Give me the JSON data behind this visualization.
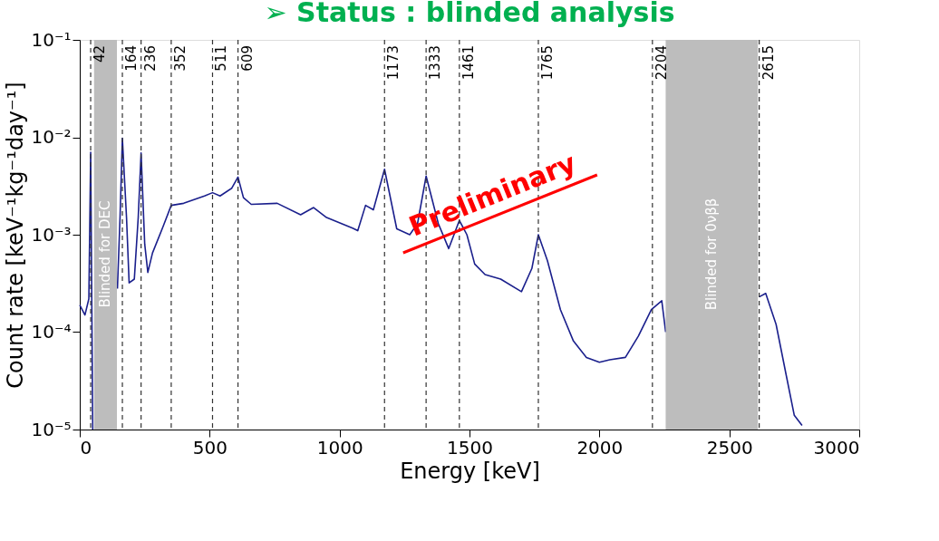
{
  "chart_data": {
    "type": "line",
    "title": "➢ Status : blinded analysis",
    "xlabel": "Energy [keV]",
    "ylabel": "Count rate [keV⁻¹kg⁻¹day⁻¹]",
    "x": [
      0,
      20,
      35,
      42,
      50,
      100,
      145,
      155,
      164,
      180,
      190,
      210,
      225,
      236,
      250,
      262,
      280,
      320,
      352,
      400,
      480,
      511,
      540,
      585,
      609,
      630,
      660,
      760,
      850,
      900,
      950,
      1050,
      1070,
      1100,
      1130,
      1173,
      1220,
      1270,
      1300,
      1333,
      1380,
      1420,
      1461,
      1490,
      1520,
      1560,
      1620,
      1700,
      1740,
      1765,
      1800,
      1850,
      1900,
      1950,
      2000,
      2040,
      2100,
      2150,
      2200,
      2240,
      2255,
      2400,
      2615,
      2640,
      2680,
      2720,
      2750,
      2780
    ],
    "series": [
      {
        "color": "#1a1f8c",
        "values": [
          0.00019,
          0.00015,
          0.00022,
          0.007,
          1e-05,
          null,
          0.00028,
          0.0015,
          0.0098,
          0.0015,
          0.00032,
          0.00035,
          0.0015,
          0.0069,
          0.0008,
          0.00041,
          0.00065,
          0.0012,
          0.002,
          0.0021,
          0.0025,
          0.0027,
          0.0025,
          0.003,
          0.0039,
          0.0024,
          0.00205,
          0.0021,
          0.0016,
          0.0019,
          0.0015,
          0.00117,
          0.0011,
          0.002,
          0.0018,
          0.0047,
          0.00115,
          0.001,
          0.0013,
          0.004,
          0.0013,
          0.00072,
          0.0014,
          0.001,
          0.0005,
          0.00039,
          0.00035,
          0.00026,
          0.00045,
          0.001,
          0.00054,
          0.00017,
          8.1e-05,
          5.5e-05,
          4.9e-05,
          5.2e-05,
          5.5e-05,
          9.1e-05,
          0.00017,
          0.00021,
          0.0001,
          null,
          0.00023,
          0.00025,
          0.00012,
          3.5e-05,
          1.4e-05,
          1.1e-05
        ]
      }
    ],
    "xlim": [
      0,
      3000
    ],
    "xticks": [
      0,
      500,
      1000,
      1500,
      2000,
      2500,
      3000
    ],
    "ylim": [
      1e-05,
      0.1
    ],
    "log": true,
    "yticks": [
      {
        "value": 1e-05,
        "label": "10⁻⁵"
      },
      {
        "value": 0.0001,
        "label": "10⁻⁴"
      },
      {
        "value": 0.001,
        "label": "10⁻³"
      },
      {
        "value": 0.01,
        "label": "10⁻²"
      },
      {
        "value": 0.1,
        "label": "10⁻¹"
      }
    ],
    "grid": false,
    "marker": "none",
    "line_style": "solid",
    "bands": [
      {
        "axis": "x",
        "from": 55,
        "to": 143,
        "label": "Blinded for DEC",
        "color": "#bdbdbd"
      },
      {
        "axis": "x",
        "from": 2255,
        "to": 2610,
        "label": "Blinded for 0νββ",
        "color": "#bdbdbd"
      }
    ],
    "ref_lines": [
      {
        "axis": "x",
        "value": 42,
        "label": "42",
        "color": "#333333",
        "line_style": "dashed"
      },
      {
        "axis": "x",
        "value": 164,
        "label": "164",
        "color": "#333333",
        "line_style": "dashed"
      },
      {
        "axis": "x",
        "value": 236,
        "label": "236",
        "color": "#333333",
        "line_style": "dashed"
      },
      {
        "axis": "x",
        "value": 352,
        "label": "352",
        "color": "#333333",
        "line_style": "dashed"
      },
      {
        "axis": "x",
        "value": 511,
        "label": "511",
        "color": "#333333",
        "line_style": "dashed"
      },
      {
        "axis": "x",
        "value": 609,
        "label": "609",
        "color": "#333333",
        "line_style": "dashed"
      },
      {
        "axis": "x",
        "value": 1173,
        "label": "1173",
        "color": "#333333",
        "line_style": "dashed"
      },
      {
        "axis": "x",
        "value": 1333,
        "label": "1333",
        "color": "#333333",
        "line_style": "dashed"
      },
      {
        "axis": "x",
        "value": 1461,
        "label": "1461",
        "color": "#333333",
        "line_style": "dashed"
      },
      {
        "axis": "x",
        "value": 1765,
        "label": "1765",
        "color": "#333333",
        "line_style": "dashed"
      },
      {
        "axis": "x",
        "value": 2204,
        "label": "2204",
        "color": "#333333",
        "line_style": "dashed"
      },
      {
        "axis": "x",
        "value": 2615,
        "label": "2615",
        "color": "#333333",
        "line_style": "dashed"
      }
    ],
    "annotations": [
      "Preliminary"
    ]
  }
}
